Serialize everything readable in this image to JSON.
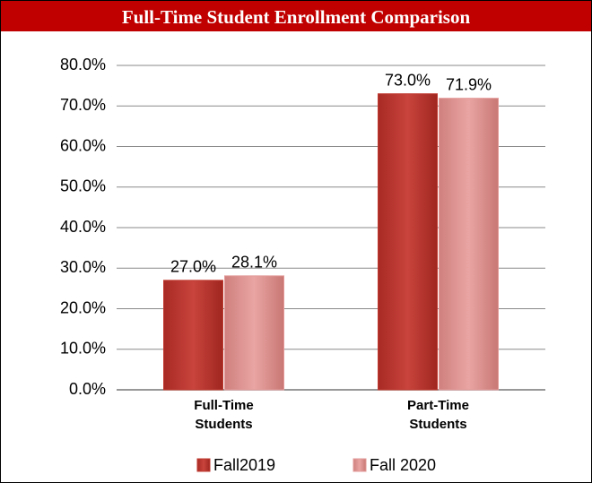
{
  "chart_data": {
    "type": "bar",
    "title": "Full-Time Student Enrollment Comparison",
    "categories": [
      "Full-Time Students",
      "Part-Time Students"
    ],
    "series": [
      {
        "name": "Fall2019",
        "color": "#c0392f",
        "values": [
          27.0,
          73.0
        ],
        "value_labels": [
          "27.0%",
          "73.0%"
        ]
      },
      {
        "name": "Fall 2020",
        "color": "#e39a98",
        "values": [
          28.1,
          71.9
        ],
        "value_labels": [
          "28.1%",
          "71.9%"
        ]
      }
    ],
    "ylim": [
      0,
      80
    ],
    "yticks": [
      {
        "value": 0,
        "label": "0.0%"
      },
      {
        "value": 10,
        "label": "10.0%"
      },
      {
        "value": 20,
        "label": "20.0%"
      },
      {
        "value": 30,
        "label": "30.0%"
      },
      {
        "value": 40,
        "label": "40.0%"
      },
      {
        "value": 50,
        "label": "50.0%"
      },
      {
        "value": 60,
        "label": "60.0%"
      },
      {
        "value": 70,
        "label": "70.0%"
      },
      {
        "value": 80,
        "label": "80.0%"
      }
    ],
    "grid": true,
    "legend": "bottom"
  }
}
